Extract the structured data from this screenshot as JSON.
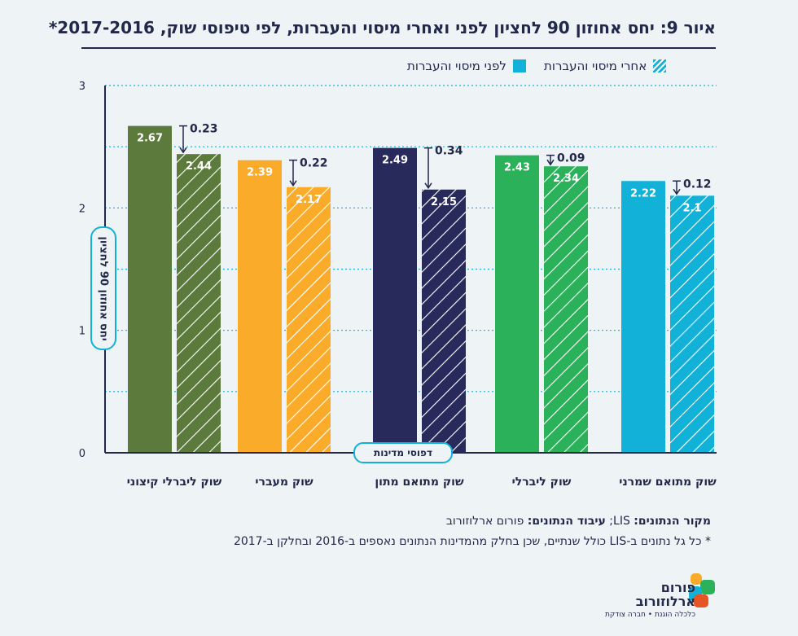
{
  "title": "איור 9: יחס אחוזון 90 לחציון לפני ואחרי מיסוי והעברות, לפי טיפוסי שוק, 2017-2016*",
  "legend": {
    "before": "לפני מיסוי והעברות",
    "after": "אחרי מיסוי והעברות"
  },
  "y_axis_title": "יחס אחוזון 90 לחציון",
  "x_axis_title": "דפוסי מדינות",
  "source": {
    "label1": "מקור הנתונים:",
    "text1": " LIS; ",
    "label2": "עיבוד הנתונים:",
    "text2": " פורום ארלוזורוב"
  },
  "note": "* כל גל נתונים ב-LIS כולל שנתיים, שכן בחלק מהמדינות הנתונים נאספים ב-2016 ובחלקן ב-2017",
  "logo": {
    "name1": "פורום",
    "name2": "ארלוזורוב",
    "tagline": "כלכלה הוגנת • חברה צודקת"
  },
  "colors": {
    "axis": "#22284a",
    "grid": "#12b1d8",
    "text": "#22284a"
  },
  "chart_data": {
    "type": "bar",
    "ylim": [
      0,
      3
    ],
    "yticks": [
      "0",
      "1",
      "2",
      "3"
    ],
    "categories": [
      "שוק ליברלי קיצוני",
      "שוק מעברי",
      "שוק מתואם מתון",
      "שוק ליברלי",
      "שוק מתואם שמרני"
    ],
    "category_colors": [
      "#5b7a3c",
      "#fbab2a",
      "#272a5a",
      "#2bb15a",
      "#12b1d8"
    ],
    "series": [
      {
        "name": "לפני מיסוי והעברות",
        "values": [
          2.67,
          2.39,
          2.49,
          2.43,
          2.22
        ]
      },
      {
        "name": "אחרי מיסוי והעברות",
        "values": [
          2.44,
          2.17,
          2.15,
          2.34,
          2.1
        ]
      }
    ],
    "value_labels": {
      "before": [
        "2.67",
        "2.39",
        "2.49",
        "2.43",
        "2.22"
      ],
      "after": [
        "2.44",
        "2.17",
        "2.15",
        "2.34",
        "2.1"
      ]
    },
    "diff_labels": [
      "0.23",
      "0.22",
      "0.34",
      "0.09",
      "0.12"
    ]
  }
}
